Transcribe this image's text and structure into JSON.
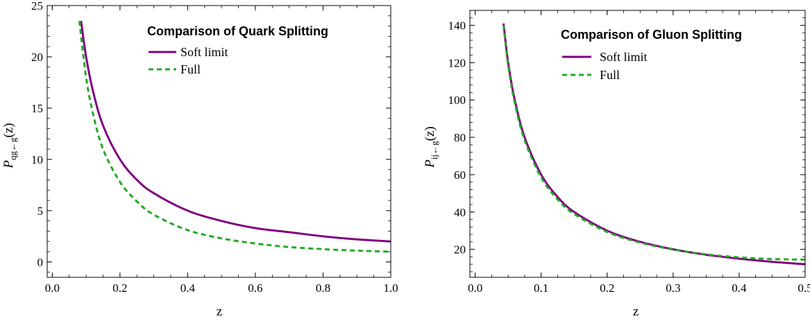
{
  "chart_data": [
    {
      "type": "line",
      "legend_title": "Comparison of Quark Splitting",
      "xlabel": "z",
      "ylabel_main": "P",
      "ylabel_sub": "qg←g",
      "ylabel_tail": "(z)",
      "xlim": [
        -0.015,
        1.0
      ],
      "ylim": [
        -1.5,
        25
      ],
      "xticks": [
        "0.0",
        "0.2",
        "0.4",
        "0.6",
        "0.8",
        "1.0"
      ],
      "xtick_values": [
        0,
        0.2,
        0.4,
        0.6,
        0.8,
        1.0
      ],
      "yticks": [
        "0",
        "5",
        "10",
        "15",
        "20",
        "25"
      ],
      "ytick_values": [
        0,
        5,
        10,
        15,
        20,
        25
      ],
      "legend_position": "top-right",
      "series": [
        {
          "name": "Soft limit",
          "color": "#800080",
          "style": "solid",
          "x": [
            0.085,
            0.1,
            0.12,
            0.15,
            0.2,
            0.25,
            0.3,
            0.4,
            0.5,
            0.6,
            0.7,
            0.8,
            0.9,
            1.0
          ],
          "y": [
            23.5,
            20.0,
            16.7,
            13.3,
            10.0,
            8.0,
            6.7,
            5.0,
            4.0,
            3.3,
            2.9,
            2.5,
            2.2,
            2.0
          ]
        },
        {
          "name": "Full",
          "color": "#22aa22",
          "style": "dashed",
          "x": [
            0.08,
            0.1,
            0.12,
            0.15,
            0.2,
            0.25,
            0.3,
            0.4,
            0.5,
            0.6,
            0.7,
            0.8,
            0.9,
            1.0
          ],
          "y": [
            23.5,
            18.0,
            14.5,
            11.0,
            7.8,
            5.9,
            4.6,
            3.1,
            2.3,
            1.8,
            1.45,
            1.25,
            1.1,
            1.0
          ]
        }
      ]
    },
    {
      "type": "line",
      "legend_title": "Comparison of Gluon Splitting",
      "xlabel": "z",
      "ylabel_main": "P",
      "ylabel_sub": "ij←g",
      "ylabel_tail": "(z)",
      "xlim": [
        -0.008,
        0.5
      ],
      "ylim": [
        5,
        148
      ],
      "xticks": [
        "0.0",
        "0.1",
        "0.2",
        "0.3",
        "0.4",
        "0.5"
      ],
      "xtick_values": [
        0,
        0.1,
        0.2,
        0.3,
        0.4,
        0.5
      ],
      "yticks": [
        "20",
        "40",
        "60",
        "80",
        "100",
        "120",
        "140"
      ],
      "ytick_values": [
        20,
        40,
        60,
        80,
        100,
        120,
        140
      ],
      "legend_position": "top-right",
      "series": [
        {
          "name": "Soft limit",
          "color": "#800080",
          "style": "solid",
          "x": [
            0.043,
            0.05,
            0.06,
            0.075,
            0.1,
            0.125,
            0.15,
            0.2,
            0.25,
            0.3,
            0.35,
            0.4,
            0.45,
            0.5
          ],
          "y": [
            141,
            120,
            100,
            80,
            60,
            48,
            40,
            30,
            24,
            20,
            17.1,
            15,
            13.3,
            12
          ]
        },
        {
          "name": "Full",
          "color": "#22aa22",
          "style": "dashed",
          "x": [
            0.043,
            0.05,
            0.06,
            0.075,
            0.1,
            0.125,
            0.15,
            0.2,
            0.25,
            0.3,
            0.35,
            0.4,
            0.45,
            0.5
          ],
          "y": [
            140,
            118.5,
            98.4,
            78.4,
            58.5,
            46.7,
            38.9,
            29.3,
            23.6,
            19.9,
            17.3,
            15.7,
            14.8,
            14.5
          ]
        }
      ]
    }
  ]
}
